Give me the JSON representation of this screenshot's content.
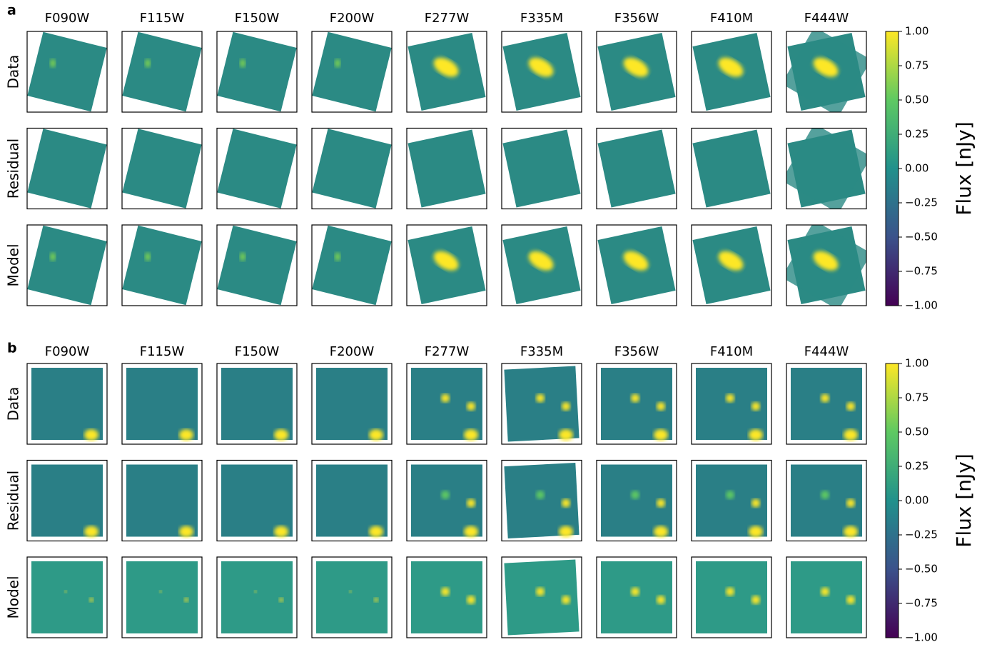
{
  "panels": [
    {
      "label": "a",
      "columns": [
        "F090W",
        "F115W",
        "F150W",
        "F200W",
        "F277W",
        "F335M",
        "F356W",
        "F410M",
        "F444W"
      ],
      "rows": [
        "Data",
        "Residual",
        "Model"
      ],
      "colorbar": {
        "label": "Flux [nJy]",
        "ylim": [
          -1,
          1
        ],
        "yticks": [
          {
            "value": -1,
            "label": "−1.00"
          },
          {
            "value": -0.75,
            "label": "−0.75"
          },
          {
            "value": -0.5,
            "label": "−0.50"
          },
          {
            "value": -0.25,
            "label": "−0.25"
          },
          {
            "value": 0,
            "label": "0.00"
          },
          {
            "value": 0.25,
            "label": "0.25"
          },
          {
            "value": 0.5,
            "label": "0.50"
          },
          {
            "value": 0.75,
            "label": "0.75"
          },
          {
            "value": 1,
            "label": "1.00"
          }
        ]
      }
    },
    {
      "label": "b",
      "columns": [
        "F090W",
        "F115W",
        "F150W",
        "F200W",
        "F277W",
        "F335M",
        "F356W",
        "F410M",
        "F444W"
      ],
      "rows": [
        "Data",
        "Residual",
        "Model"
      ],
      "colorbar": {
        "label": "Flux [nJy]",
        "ylim": [
          -1,
          1
        ],
        "yticks": [
          {
            "value": -1,
            "label": "−1.00"
          },
          {
            "value": -0.75,
            "label": "−0.75"
          },
          {
            "value": -0.5,
            "label": "−0.50"
          },
          {
            "value": -0.25,
            "label": "−0.25"
          },
          {
            "value": 0,
            "label": "0.00"
          },
          {
            "value": 0.25,
            "label": "0.25"
          },
          {
            "value": 0.5,
            "label": "0.50"
          },
          {
            "value": 0.75,
            "label": "0.75"
          },
          {
            "value": 1,
            "label": "1.00"
          }
        ]
      }
    }
  ]
}
